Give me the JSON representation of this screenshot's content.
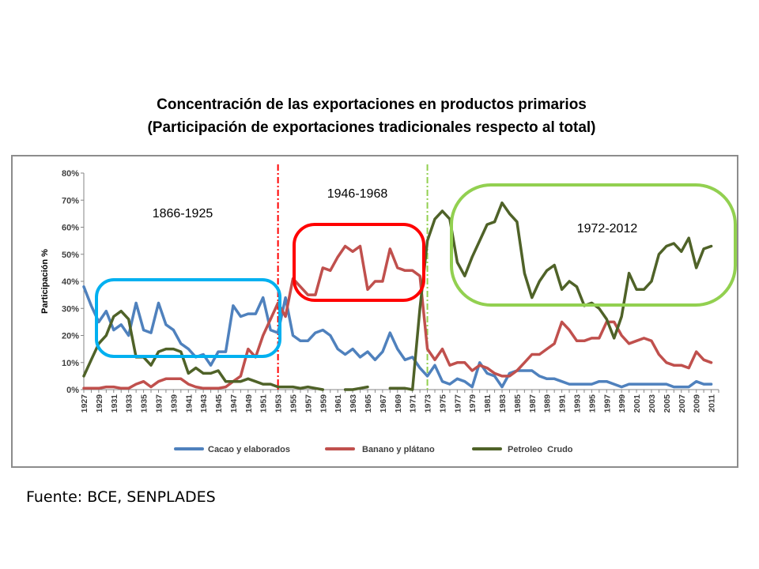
{
  "title_line1": "Concentración de las exportaciones en productos primarios",
  "title_line2": "(Participación de exportaciones tradicionales respecto al total)",
  "source": "Fuente: BCE, SENPLADES",
  "chart_data": {
    "type": "line",
    "ylabel": "Participación %",
    "xlabel": "",
    "ylim": [
      0,
      80
    ],
    "y_ticks": [
      "0%",
      "10%",
      "20%",
      "30%",
      "40%",
      "50%",
      "60%",
      "70%",
      "80%"
    ],
    "grid": false,
    "legend_position": "bottom",
    "x_tick_labels": [
      "1927",
      "1929",
      "1931",
      "1933",
      "1935",
      "1937",
      "1939",
      "1941",
      "1943",
      "1945",
      "1947",
      "1949",
      "1951",
      "1953",
      "1955",
      "1957",
      "1959",
      "1961",
      "1963",
      "1965",
      "1967",
      "1969",
      "1971",
      "1973",
      "1975",
      "1977",
      "1979",
      "1981",
      "1983",
      "1985",
      "1987",
      "1989",
      "1991",
      "1993",
      "1995",
      "1997",
      "1999",
      "2001",
      "2003",
      "2005",
      "2007",
      "2009",
      "2011"
    ],
    "x_start": 1927,
    "x_end": 2012,
    "series": [
      {
        "name": "Cacao y elaborados",
        "color": "#4f81bd",
        "points": [
          [
            1927,
            38
          ],
          [
            1928,
            31
          ],
          [
            1929,
            25
          ],
          [
            1930,
            29
          ],
          [
            1931,
            22
          ],
          [
            1932,
            24
          ],
          [
            1933,
            20
          ],
          [
            1934,
            32
          ],
          [
            1935,
            22
          ],
          [
            1936,
            21
          ],
          [
            1937,
            32
          ],
          [
            1938,
            24
          ],
          [
            1939,
            22
          ],
          [
            1940,
            17
          ],
          [
            1941,
            15
          ],
          [
            1942,
            12
          ],
          [
            1943,
            13
          ],
          [
            1944,
            9
          ],
          [
            1945,
            14
          ],
          [
            1946,
            14
          ],
          [
            1947,
            31
          ],
          [
            1948,
            27
          ],
          [
            1949,
            28
          ],
          [
            1950,
            28
          ],
          [
            1951,
            34
          ],
          [
            1952,
            22
          ],
          [
            1953,
            21
          ],
          [
            1954,
            34
          ],
          [
            1955,
            20
          ],
          [
            1956,
            18
          ],
          [
            1957,
            18
          ],
          [
            1958,
            21
          ],
          [
            1959,
            22
          ],
          [
            1960,
            20
          ],
          [
            1961,
            15
          ],
          [
            1962,
            13
          ],
          [
            1963,
            15
          ],
          [
            1964,
            12
          ],
          [
            1965,
            14
          ],
          [
            1966,
            11
          ],
          [
            1967,
            14
          ],
          [
            1968,
            21
          ],
          [
            1969,
            15
          ],
          [
            1970,
            11
          ],
          [
            1971,
            12
          ],
          [
            1972,
            8
          ],
          [
            1973,
            5
          ],
          [
            1974,
            9
          ],
          [
            1975,
            3
          ],
          [
            1976,
            2
          ],
          [
            1977,
            4
          ],
          [
            1978,
            3
          ],
          [
            1979,
            1
          ],
          [
            1980,
            10
          ],
          [
            1981,
            6
          ],
          [
            1982,
            5
          ],
          [
            1983,
            1
          ],
          [
            1984,
            6
          ],
          [
            1985,
            7
          ],
          [
            1986,
            7
          ],
          [
            1987,
            7
          ],
          [
            1988,
            5
          ],
          [
            1989,
            4
          ],
          [
            1990,
            4
          ],
          [
            1991,
            3
          ],
          [
            1992,
            2
          ],
          [
            1993,
            2
          ],
          [
            1994,
            2
          ],
          [
            1995,
            2
          ],
          [
            1996,
            3
          ],
          [
            1997,
            3
          ],
          [
            1998,
            2
          ],
          [
            1999,
            1
          ],
          [
            2000,
            2
          ],
          [
            2001,
            2
          ],
          [
            2002,
            2
          ],
          [
            2003,
            2
          ],
          [
            2004,
            2
          ],
          [
            2005,
            2
          ],
          [
            2006,
            1
          ],
          [
            2007,
            1
          ],
          [
            2008,
            1
          ],
          [
            2009,
            3
          ],
          [
            2010,
            2
          ],
          [
            2011,
            2
          ]
        ]
      },
      {
        "name": "Banano y plátano",
        "color": "#c0504d",
        "points": [
          [
            1927,
            0.5
          ],
          [
            1928,
            0.5
          ],
          [
            1929,
            0.5
          ],
          [
            1930,
            1
          ],
          [
            1931,
            1
          ],
          [
            1932,
            0.5
          ],
          [
            1933,
            0.5
          ],
          [
            1934,
            2
          ],
          [
            1935,
            3
          ],
          [
            1936,
            1
          ],
          [
            1937,
            3
          ],
          [
            1938,
            4
          ],
          [
            1939,
            4
          ],
          [
            1940,
            4
          ],
          [
            1941,
            2
          ],
          [
            1942,
            1
          ],
          [
            1943,
            0.5
          ],
          [
            1944,
            0.5
          ],
          [
            1945,
            0.5
          ],
          [
            1946,
            1
          ],
          [
            1947,
            3
          ],
          [
            1948,
            5
          ],
          [
            1949,
            15
          ],
          [
            1950,
            12
          ],
          [
            1951,
            20
          ],
          [
            1952,
            26
          ],
          [
            1953,
            32
          ],
          [
            1954,
            27
          ],
          [
            1955,
            41
          ],
          [
            1956,
            38
          ],
          [
            1957,
            35
          ],
          [
            1958,
            35
          ],
          [
            1959,
            45
          ],
          [
            1960,
            44
          ],
          [
            1961,
            49
          ],
          [
            1962,
            53
          ],
          [
            1963,
            51
          ],
          [
            1964,
            53
          ],
          [
            1965,
            37
          ],
          [
            1966,
            40
          ],
          [
            1967,
            40
          ],
          [
            1968,
            52
          ],
          [
            1969,
            45
          ],
          [
            1970,
            44
          ],
          [
            1971,
            44
          ],
          [
            1972,
            42
          ],
          [
            1973,
            15
          ],
          [
            1974,
            11
          ],
          [
            1975,
            15
          ],
          [
            1976,
            9
          ],
          [
            1977,
            10
          ],
          [
            1978,
            10
          ],
          [
            1979,
            7
          ],
          [
            1980,
            9
          ],
          [
            1981,
            8
          ],
          [
            1982,
            6
          ],
          [
            1983,
            5
          ],
          [
            1984,
            5
          ],
          [
            1985,
            7
          ],
          [
            1986,
            10
          ],
          [
            1987,
            13
          ],
          [
            1988,
            13
          ],
          [
            1989,
            15
          ],
          [
            1990,
            17
          ],
          [
            1991,
            25
          ],
          [
            1992,
            22
          ],
          [
            1993,
            18
          ],
          [
            1994,
            18
          ],
          [
            1995,
            19
          ],
          [
            1996,
            19
          ],
          [
            1997,
            25
          ],
          [
            1998,
            25
          ],
          [
            1999,
            20
          ],
          [
            2000,
            17
          ],
          [
            2001,
            18
          ],
          [
            2002,
            19
          ],
          [
            2003,
            18
          ],
          [
            2004,
            13
          ],
          [
            2005,
            10
          ],
          [
            2006,
            9
          ],
          [
            2007,
            9
          ],
          [
            2008,
            8
          ],
          [
            2009,
            14
          ],
          [
            2010,
            11
          ],
          [
            2011,
            10
          ]
        ]
      },
      {
        "name": "Petroleo  Crudo",
        "color": "#4f6228",
        "segments": [
          [
            [
              1927,
              5
            ],
            [
              1928,
              11
            ],
            [
              1929,
              17
            ],
            [
              1930,
              20
            ],
            [
              1931,
              27
            ],
            [
              1932,
              29
            ],
            [
              1933,
              26
            ],
            [
              1934,
              12
            ],
            [
              1935,
              12
            ],
            [
              1936,
              9
            ],
            [
              1937,
              14
            ],
            [
              1938,
              15
            ],
            [
              1939,
              15
            ],
            [
              1940,
              14
            ],
            [
              1941,
              6
            ],
            [
              1942,
              8
            ],
            [
              1943,
              6
            ],
            [
              1944,
              6
            ],
            [
              1945,
              7
            ],
            [
              1946,
              3
            ],
            [
              1947,
              3
            ],
            [
              1948,
              3
            ],
            [
              1949,
              4
            ],
            [
              1950,
              3
            ],
            [
              1951,
              2
            ],
            [
              1952,
              2
            ],
            [
              1953,
              1
            ],
            [
              1954,
              1
            ],
            [
              1955,
              1
            ],
            [
              1956,
              0.5
            ],
            [
              1957,
              1
            ],
            [
              1958,
              0.5
            ],
            [
              1959,
              0
            ]
          ],
          [
            [
              1962,
              0
            ],
            [
              1963,
              0
            ],
            [
              1964,
              0.5
            ],
            [
              1965,
              1
            ]
          ],
          [
            [
              1968,
              0.5
            ],
            [
              1969,
              0.5
            ],
            [
              1970,
              0.5
            ],
            [
              1971,
              0
            ],
            [
              1972,
              30
            ],
            [
              1973,
              55
            ],
            [
              1974,
              63
            ],
            [
              1975,
              66
            ],
            [
              1976,
              63
            ],
            [
              1977,
              47
            ],
            [
              1978,
              42
            ],
            [
              1979,
              49
            ],
            [
              1980,
              55
            ],
            [
              1981,
              61
            ],
            [
              1982,
              62
            ],
            [
              1983,
              69
            ],
            [
              1984,
              65
            ],
            [
              1985,
              62
            ],
            [
              1986,
              43
            ],
            [
              1987,
              34
            ],
            [
              1988,
              40
            ],
            [
              1989,
              44
            ],
            [
              1990,
              46
            ],
            [
              1991,
              37
            ],
            [
              1992,
              40
            ],
            [
              1993,
              38
            ],
            [
              1994,
              31
            ],
            [
              1995,
              32
            ],
            [
              1996,
              30
            ],
            [
              1997,
              26
            ],
            [
              1998,
              19
            ],
            [
              1999,
              27
            ],
            [
              2000,
              43
            ],
            [
              2001,
              37
            ],
            [
              2002,
              37
            ],
            [
              2003,
              40
            ],
            [
              2004,
              50
            ],
            [
              2005,
              53
            ],
            [
              2006,
              54
            ],
            [
              2007,
              51
            ],
            [
              2008,
              56
            ],
            [
              2009,
              45
            ],
            [
              2010,
              52
            ],
            [
              2011,
              53
            ]
          ]
        ]
      }
    ],
    "period_annotations": [
      {
        "label": "1866-1925",
        "color": "#00b0f0"
      },
      {
        "label": "1946-1968",
        "color": "#ff0000"
      },
      {
        "label": "1972-2012",
        "color": "#92d050"
      }
    ],
    "vertical_markers": [
      {
        "x": 1953,
        "color": "#ff0000"
      },
      {
        "x": 1973,
        "color": "#92d050"
      }
    ]
  }
}
